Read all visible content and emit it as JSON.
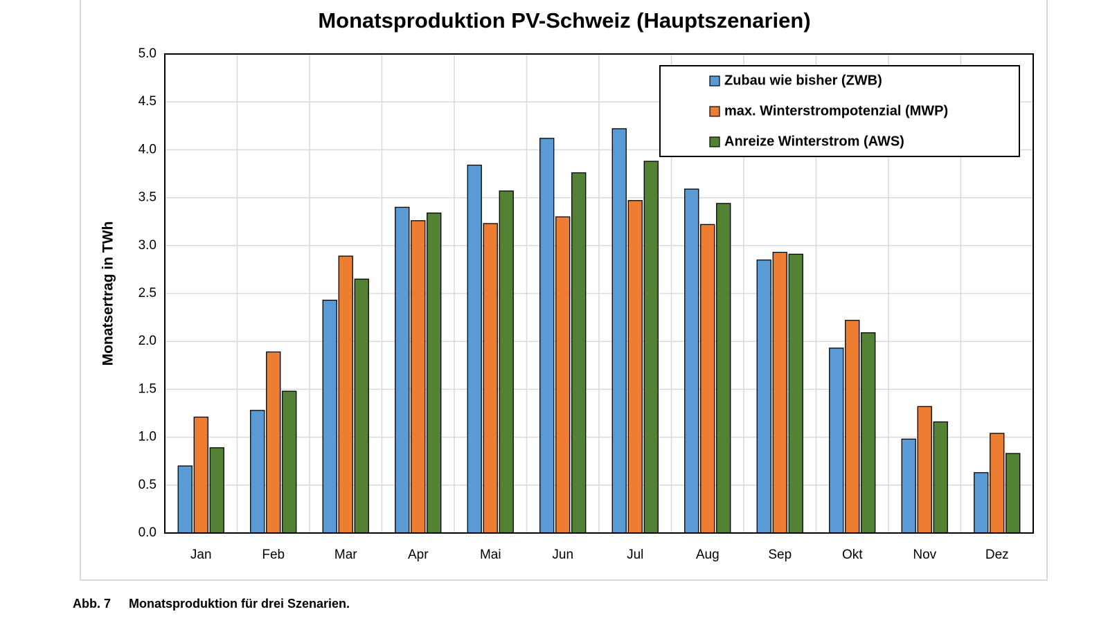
{
  "chart_data": {
    "type": "bar",
    "title": "Monatsproduktion PV-Schweiz (Hauptszenarien)",
    "y_label": "Monatsertrag in TWh",
    "categories": [
      "Jan",
      "Feb",
      "Mar",
      "Apr",
      "Mai",
      "Jun",
      "Jul",
      "Aug",
      "Sep",
      "Okt",
      "Nov",
      "Dez"
    ],
    "series": [
      {
        "name": "Zubau wie bisher (ZWB)",
        "color": "#5b9bd5",
        "values": [
          0.7,
          1.28,
          2.43,
          3.4,
          3.84,
          4.12,
          4.22,
          3.59,
          2.85,
          1.93,
          0.98,
          0.63
        ]
      },
      {
        "name": "max. Winterstrompotenzial (MWP)",
        "color": "#ed7d31",
        "values": [
          1.21,
          1.89,
          2.89,
          3.26,
          3.23,
          3.3,
          3.47,
          3.22,
          2.93,
          2.22,
          1.32,
          1.04
        ]
      },
      {
        "name": "Anreize Winterstrom (AWS)",
        "color": "#548235",
        "values": [
          0.89,
          1.48,
          2.65,
          3.34,
          3.57,
          3.76,
          3.88,
          3.44,
          2.91,
          2.09,
          1.16,
          0.83
        ]
      }
    ],
    "ylim": [
      0,
      5
    ],
    "yticks": [
      {
        "value": 0,
        "label": "0.0"
      },
      0.5,
      {
        "value": 1,
        "label": "1.0"
      },
      1.5,
      {
        "value": 2,
        "label": "2.0"
      },
      2.5,
      {
        "value": 3,
        "label": "3.0"
      },
      3.5,
      {
        "value": 4,
        "label": "4.0"
      },
      4.5,
      {
        "value": 5,
        "label": "5.0"
      }
    ],
    "grid": true,
    "legend_position": "upper right"
  },
  "caption": {
    "number": "Abb. 7",
    "text": "Monatsproduktion für drei Szenarien."
  }
}
